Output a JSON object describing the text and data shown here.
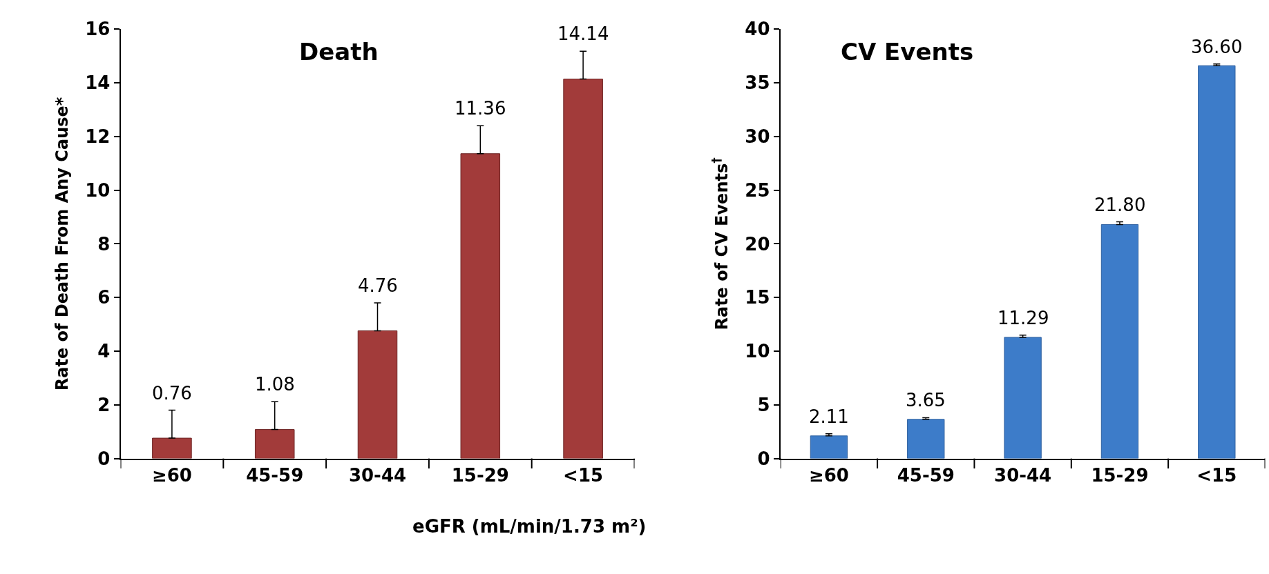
{
  "chart_data": [
    {
      "type": "bar",
      "title": "Death",
      "ylabel": "Rate of Death From Any Cause*",
      "xlabel": "eGFR (mL/min/1.73 m²)",
      "categories": [
        "≥60",
        "45-59",
        "30-44",
        "15-29",
        "<15"
      ],
      "values": [
        0.76,
        1.08,
        4.76,
        11.36,
        14.14
      ],
      "color": "#a23b3a",
      "errors": [
        [
          0.76,
          1.8
        ],
        [
          1.08,
          2.12
        ],
        [
          4.76,
          5.8
        ],
        [
          11.36,
          12.4
        ],
        [
          14.14,
          15.18
        ]
      ],
      "ylim": [
        0,
        16
      ],
      "yticks": [
        0,
        2,
        4,
        6,
        8,
        10,
        12,
        14,
        16
      ],
      "data_labels": true,
      "legend": false
    },
    {
      "type": "bar",
      "title": "CV Events",
      "ylabel": "Rate of CV Events$^{†}$",
      "categories": [
        "≥60",
        "45-59",
        "30-44",
        "15-29",
        "<15"
      ],
      "values": [
        2.11,
        3.65,
        11.29,
        21.8,
        36.6
      ],
      "color": "#3d7cc9",
      "value_labels": [
        "2.11",
        "3.65",
        "11.29",
        "21.80",
        "36.60"
      ],
      "errors": [
        [
          2.11,
          2.3
        ],
        [
          3.65,
          3.8
        ],
        [
          11.29,
          11.5
        ],
        [
          21.8,
          22.05
        ],
        [
          36.6,
          36.75
        ]
      ],
      "ylim": [
        0,
        40
      ],
      "yticks": [
        0,
        5,
        10,
        15,
        20,
        25,
        30,
        35,
        40
      ],
      "legend": false
    }
  ]
}
